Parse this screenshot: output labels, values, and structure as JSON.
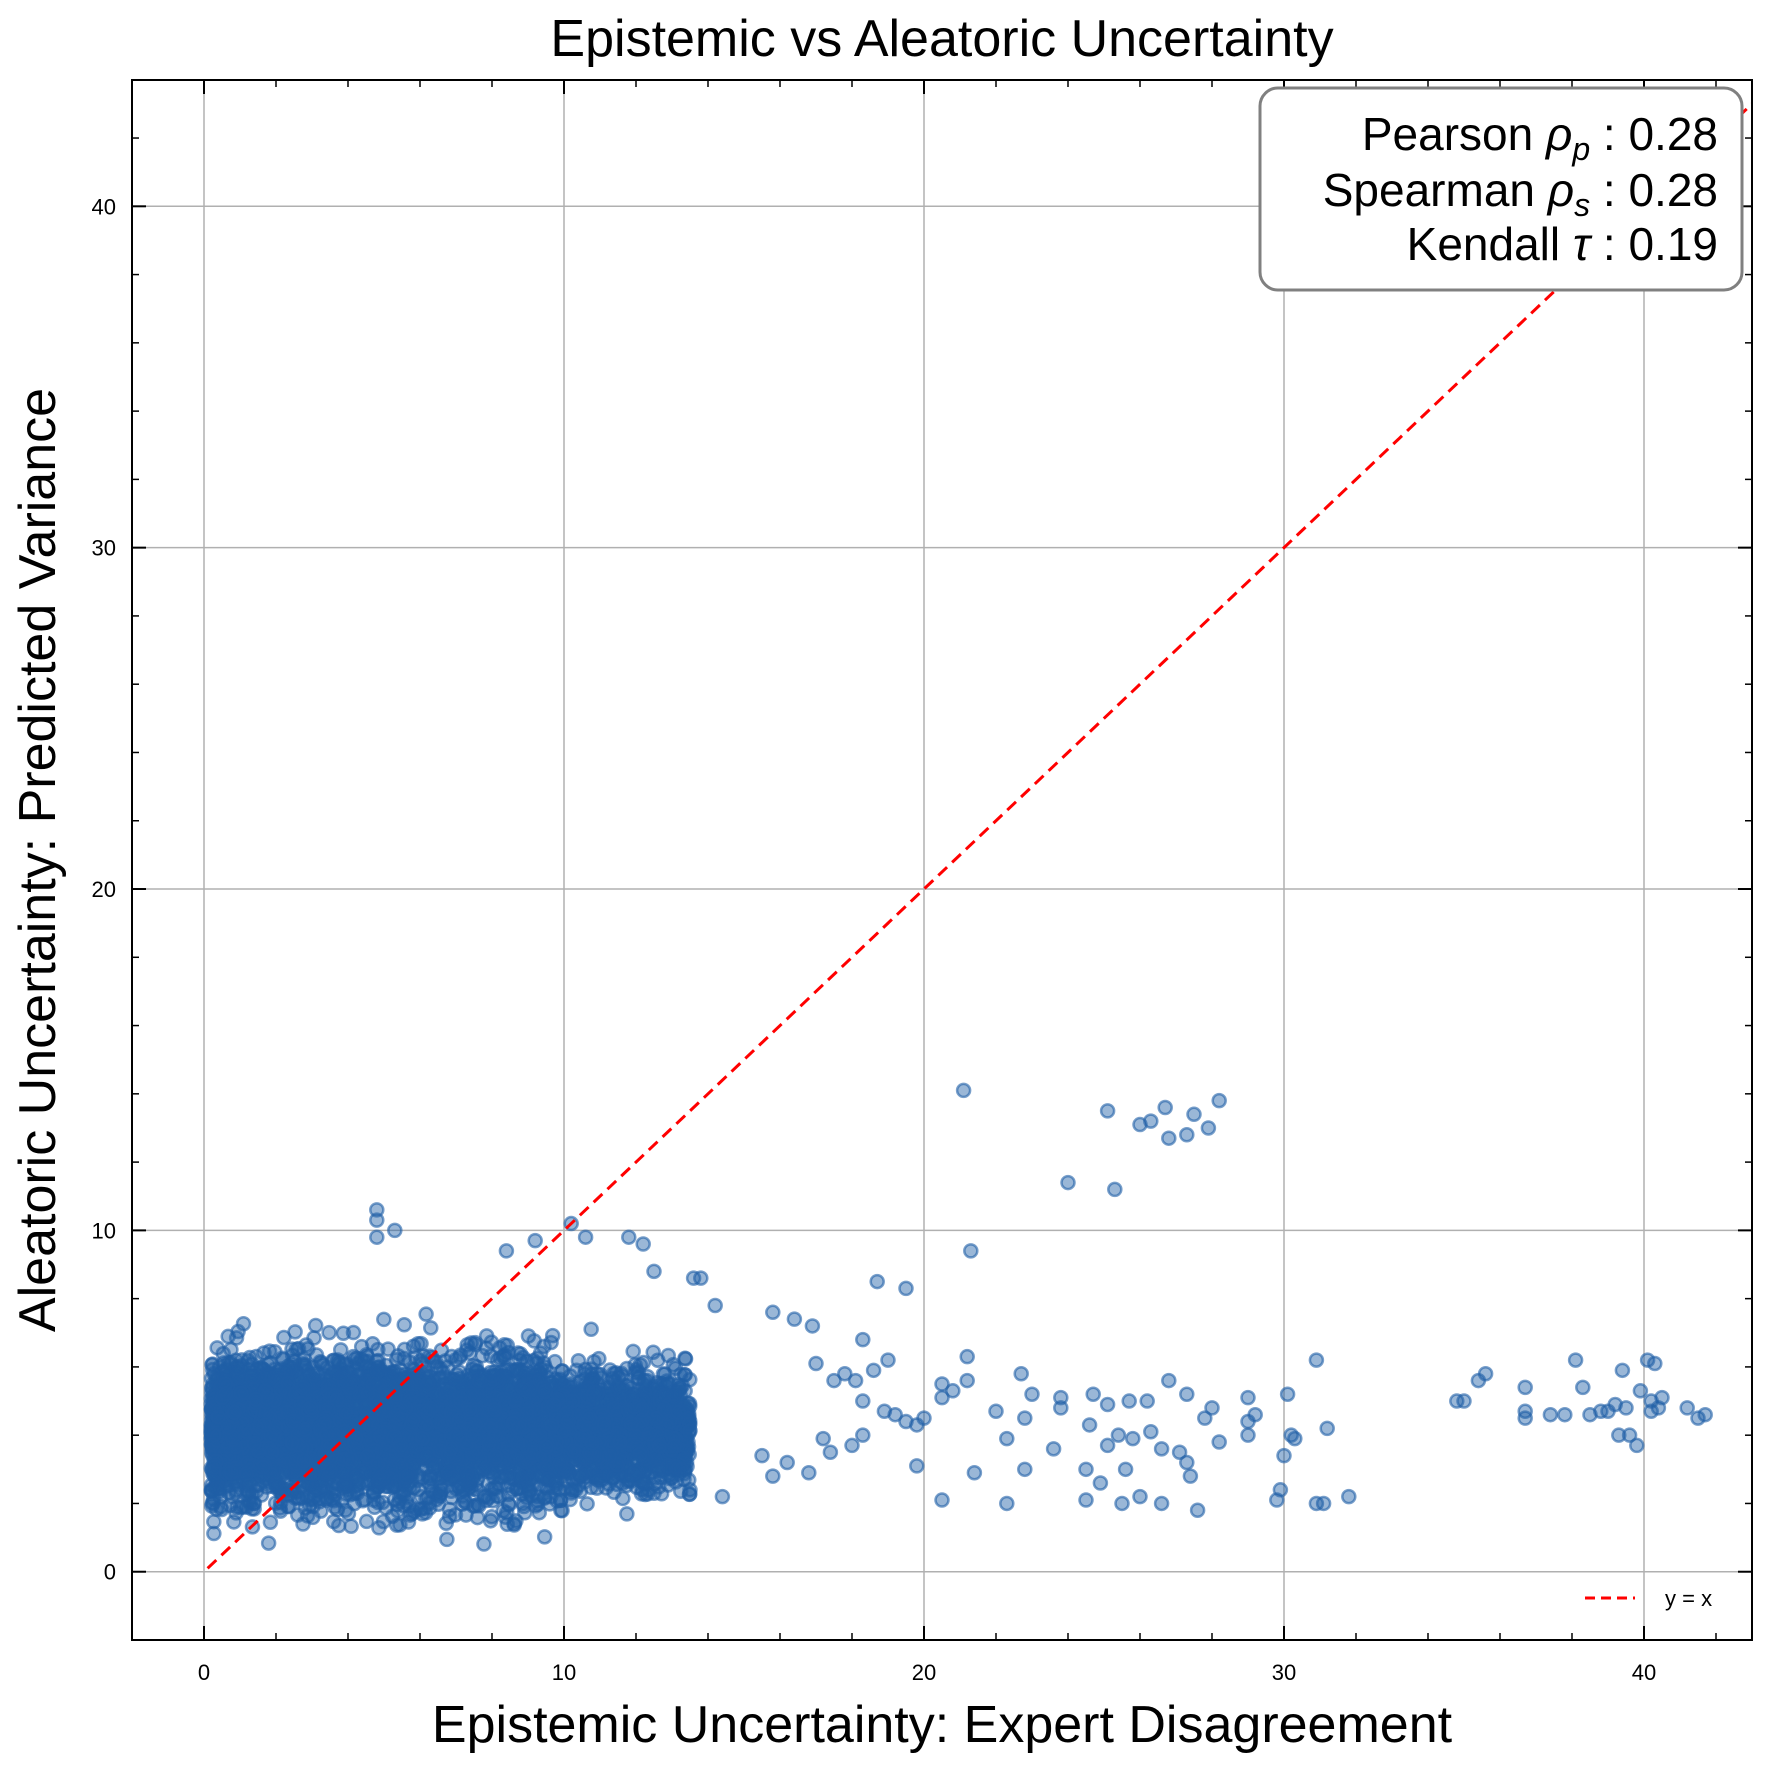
{
  "chart_data": {
    "type": "scatter",
    "title": "Epistemic vs Aleatoric Uncertainty",
    "xlabel": "Epistemic Uncertainty: Expert Disagreement",
    "ylabel": "Aleatoric Uncertainty: Predicted Variance",
    "xlim": [
      -2,
      43
    ],
    "ylim": [
      -2,
      43.7
    ],
    "xticks": [
      0,
      10,
      20,
      30,
      40
    ],
    "yticks": [
      0,
      10,
      20,
      30,
      40
    ],
    "grid": true,
    "point_color": "#1f5fa6",
    "reference_line": {
      "label": "y = x",
      "color": "#ff0000",
      "style": "dashed",
      "from": [
        0.1,
        0.1
      ],
      "to": [
        43,
        43
      ]
    },
    "legend": {
      "placement": "bottom-right",
      "entries": [
        "y = x"
      ]
    },
    "stats": [
      {
        "label": "Pearson",
        "symbol": "ρ",
        "sub": "p",
        "value": "0.28"
      },
      {
        "label": "Spearman",
        "symbol": "ρ",
        "sub": "s",
        "value": "0.28"
      },
      {
        "label": "Kendall",
        "symbol": "τ",
        "sub": "",
        "value": "0.19"
      }
    ],
    "dense_cluster": {
      "x_range": [
        0.2,
        13.5
      ],
      "y_center": 4.2,
      "y_spread": 1.8
    },
    "points": [
      [
        21.1,
        14.1
      ],
      [
        25.1,
        13.5
      ],
      [
        26.0,
        13.1
      ],
      [
        26.3,
        13.2
      ],
      [
        26.7,
        13.6
      ],
      [
        27.5,
        13.4
      ],
      [
        28.2,
        13.8
      ],
      [
        27.3,
        12.8
      ],
      [
        26.8,
        12.7
      ],
      [
        27.9,
        13.0
      ],
      [
        24.0,
        11.4
      ],
      [
        25.3,
        11.2
      ],
      [
        21.3,
        9.4
      ],
      [
        18.7,
        8.5
      ],
      [
        19.5,
        8.3
      ],
      [
        4.8,
        10.6
      ],
      [
        4.8,
        10.3
      ],
      [
        5.3,
        10.0
      ],
      [
        4.8,
        9.8
      ],
      [
        10.2,
        10.2
      ],
      [
        10.6,
        9.8
      ],
      [
        11.8,
        9.8
      ],
      [
        12.2,
        9.6
      ],
      [
        9.2,
        9.7
      ],
      [
        8.4,
        9.4
      ],
      [
        12.5,
        8.8
      ],
      [
        13.6,
        8.6
      ],
      [
        13.8,
        8.6
      ],
      [
        14.2,
        7.8
      ],
      [
        15.8,
        7.6
      ],
      [
        16.4,
        7.4
      ],
      [
        16.9,
        7.2
      ],
      [
        18.3,
        6.8
      ],
      [
        17.0,
        6.1
      ],
      [
        19.0,
        6.2
      ],
      [
        21.2,
        6.3
      ],
      [
        21.2,
        5.6
      ],
      [
        20.5,
        5.5
      ],
      [
        20.8,
        5.3
      ],
      [
        20.5,
        5.1
      ],
      [
        22.7,
        5.8
      ],
      [
        23.0,
        5.2
      ],
      [
        23.8,
        5.1
      ],
      [
        24.7,
        5.2
      ],
      [
        25.1,
        4.9
      ],
      [
        25.7,
        5.0
      ],
      [
        26.2,
        5.0
      ],
      [
        26.8,
        5.6
      ],
      [
        27.3,
        5.2
      ],
      [
        29.0,
        5.1
      ],
      [
        29.2,
        4.6
      ],
      [
        30.1,
        5.2
      ],
      [
        30.9,
        6.2
      ],
      [
        31.2,
        4.2
      ],
      [
        30.2,
        4.0
      ],
      [
        22.0,
        4.7
      ],
      [
        22.3,
        3.9
      ],
      [
        22.8,
        4.5
      ],
      [
        23.8,
        4.8
      ],
      [
        23.6,
        3.6
      ],
      [
        24.6,
        4.3
      ],
      [
        25.1,
        3.7
      ],
      [
        25.4,
        4.0
      ],
      [
        25.8,
        3.9
      ],
      [
        26.3,
        4.1
      ],
      [
        26.6,
        3.6
      ],
      [
        27.1,
        3.5
      ],
      [
        27.3,
        3.2
      ],
      [
        27.8,
        4.5
      ],
      [
        28.0,
        4.8
      ],
      [
        28.2,
        3.8
      ],
      [
        29.0,
        4.4
      ],
      [
        29.0,
        4.0
      ],
      [
        30.0,
        3.4
      ],
      [
        30.3,
        3.9
      ],
      [
        21.4,
        2.9
      ],
      [
        22.8,
        3.0
      ],
      [
        24.5,
        3.0
      ],
      [
        24.9,
        2.6
      ],
      [
        25.6,
        3.0
      ],
      [
        27.4,
        2.8
      ],
      [
        20.5,
        2.1
      ],
      [
        22.3,
        2.0
      ],
      [
        24.5,
        2.1
      ],
      [
        25.5,
        2.0
      ],
      [
        26.0,
        2.2
      ],
      [
        26.6,
        2.0
      ],
      [
        27.6,
        1.8
      ],
      [
        29.8,
        2.1
      ],
      [
        29.9,
        2.4
      ],
      [
        30.9,
        2.0
      ],
      [
        31.1,
        2.0
      ],
      [
        31.8,
        2.2
      ],
      [
        19.8,
        3.1
      ],
      [
        20.0,
        4.5
      ],
      [
        34.8,
        5.0
      ],
      [
        35.0,
        5.0
      ],
      [
        35.4,
        5.6
      ],
      [
        35.6,
        5.8
      ],
      [
        36.7,
        5.4
      ],
      [
        36.7,
        4.7
      ],
      [
        36.7,
        4.5
      ],
      [
        37.4,
        4.6
      ],
      [
        37.8,
        4.6
      ],
      [
        38.1,
        6.2
      ],
      [
        38.3,
        5.4
      ],
      [
        38.5,
        4.6
      ],
      [
        38.8,
        4.7
      ],
      [
        39.0,
        4.7
      ],
      [
        39.2,
        4.9
      ],
      [
        39.4,
        5.9
      ],
      [
        39.5,
        4.8
      ],
      [
        39.3,
        4.0
      ],
      [
        39.6,
        4.0
      ],
      [
        39.8,
        3.7
      ],
      [
        39.9,
        5.3
      ],
      [
        40.1,
        6.2
      ],
      [
        40.3,
        6.1
      ],
      [
        40.2,
        5.0
      ],
      [
        40.2,
        4.7
      ],
      [
        40.4,
        4.8
      ],
      [
        40.5,
        5.1
      ],
      [
        41.2,
        4.8
      ],
      [
        41.5,
        4.5
      ],
      [
        41.7,
        4.6
      ],
      [
        17.5,
        5.6
      ],
      [
        17.8,
        5.8
      ],
      [
        18.1,
        5.6
      ],
      [
        18.3,
        5.0
      ],
      [
        18.6,
        5.9
      ],
      [
        18.9,
        4.7
      ],
      [
        19.2,
        4.6
      ],
      [
        19.5,
        4.4
      ],
      [
        19.8,
        4.3
      ],
      [
        18.3,
        4.0
      ],
      [
        17.2,
        3.9
      ],
      [
        17.4,
        3.5
      ],
      [
        18.0,
        3.7
      ],
      [
        16.8,
        2.9
      ],
      [
        15.5,
        3.4
      ],
      [
        15.8,
        2.8
      ],
      [
        16.2,
        3.2
      ],
      [
        14.4,
        2.2
      ],
      [
        13.5,
        2.4
      ],
      [
        12.5,
        2.3
      ]
    ]
  }
}
